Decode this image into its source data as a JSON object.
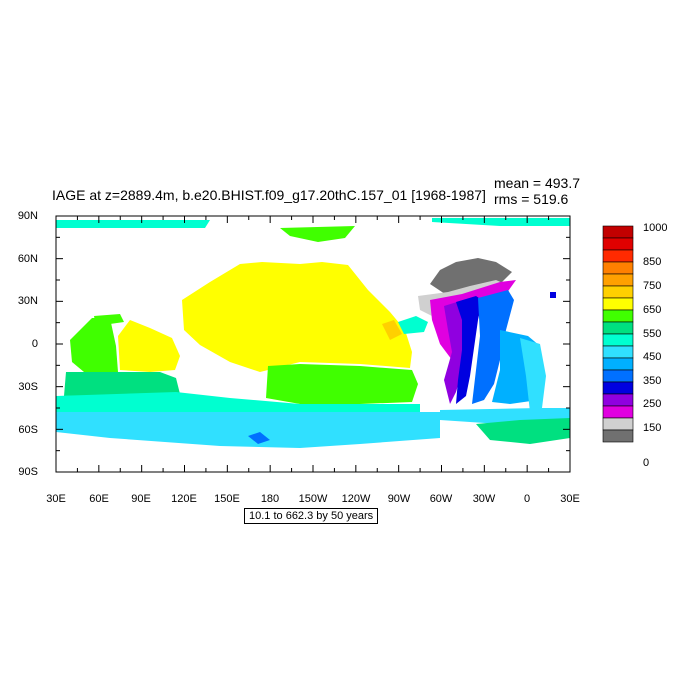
{
  "title": "IAGE at z=2889.4m, b.e20.BHIST.f09_g17.20thC.157_01 [1968-1987]",
  "mean_text": "mean = 493.7",
  "rms_text": "rms = 519.6",
  "note": "10.1 to 662.3 by 50 years",
  "lat_labels": [
    "90N",
    "60N",
    "30N",
    "0",
    "30S",
    "60S",
    "90S"
  ],
  "lon_labels": [
    "30E",
    "60E",
    "90E",
    "120E",
    "150E",
    "180",
    "150W",
    "120W",
    "90W",
    "60W",
    "30W",
    "0",
    "30E"
  ],
  "colorbar": {
    "labels": [
      "1000",
      "850",
      "750",
      "650",
      "550",
      "450",
      "350",
      "250",
      "150",
      "0"
    ],
    "colors": [
      "#c20000",
      "#e00000",
      "#ff2a00",
      "#ff8000",
      "#ffa000",
      "#ffd000",
      "#ffff00",
      "#40ff00",
      "#00e080",
      "#00ffd0",
      "#30e0ff",
      "#00b0ff",
      "#0070ff",
      "#0000e0",
      "#9000e0",
      "#e000e0",
      "#d0d0d0",
      "#707070"
    ]
  },
  "colors": {
    "frame": "#000000",
    "background": "#ffffff"
  }
}
